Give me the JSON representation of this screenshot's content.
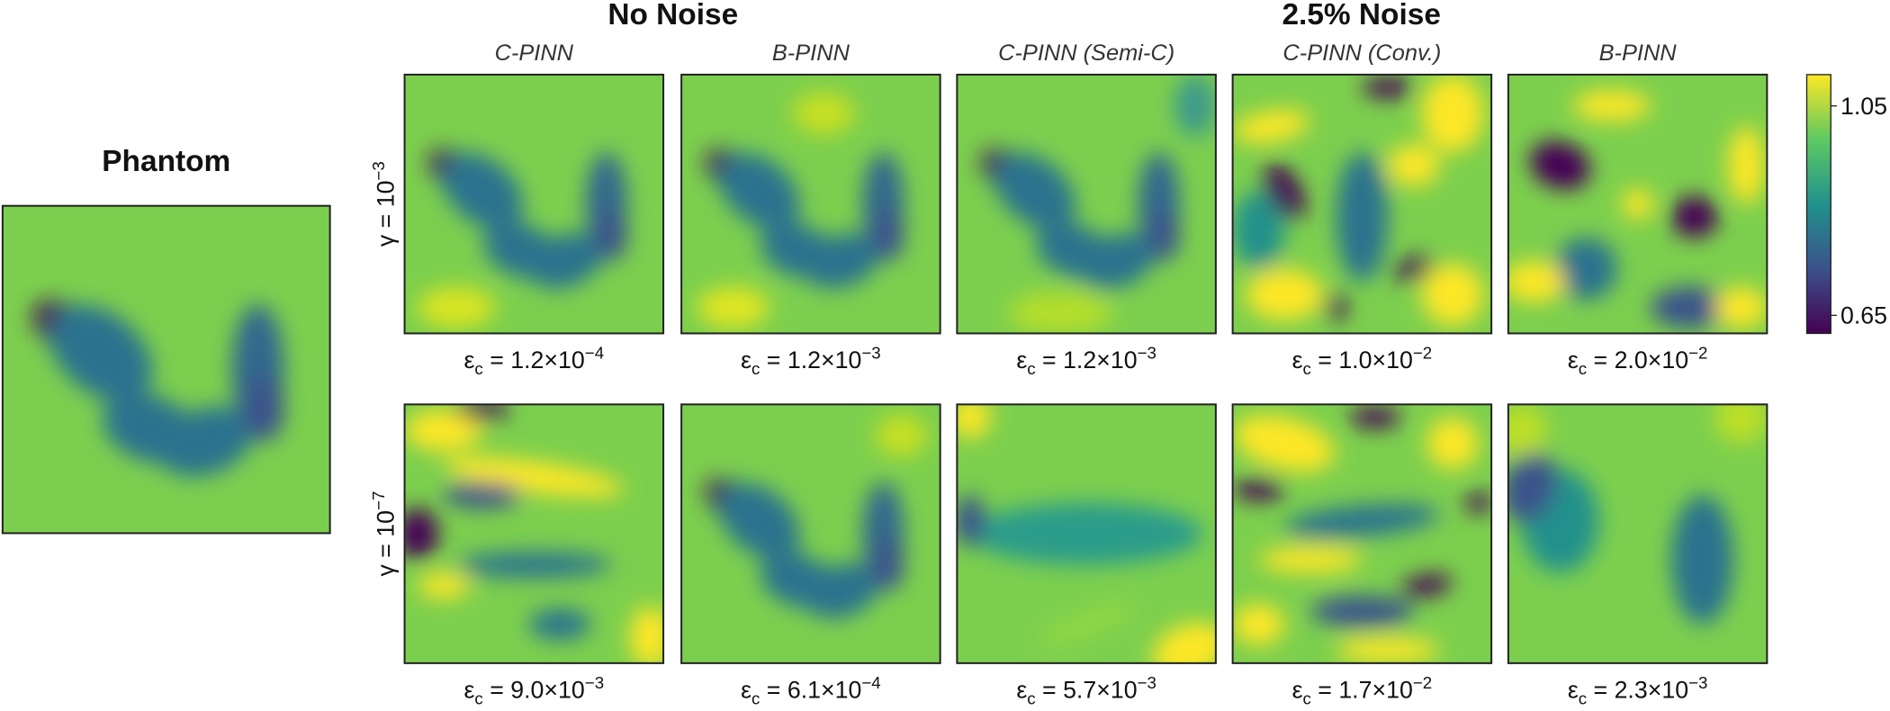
{
  "titles": {
    "left": "No Noise",
    "right": "2.5% Noise"
  },
  "phantom": {
    "title": "Phantom"
  },
  "columns": [
    "C-PINN",
    "B-PINN",
    "C-PINN (Semi-C)",
    "C-PINN (Conv.)",
    "B-PINN"
  ],
  "rows": [
    {
      "gamma": {
        "text": "γ = 10",
        "superscript": "−3"
      },
      "errors": [
        {
          "symbol": "ε",
          "subscript": "c",
          "text": " = 1.2×10",
          "superscript": "−4"
        },
        {
          "symbol": "ε",
          "subscript": "c",
          "text": " = 1.2×10",
          "superscript": "−3"
        },
        {
          "symbol": "ε",
          "subscript": "c",
          "text": " = 1.2×10",
          "superscript": "−3"
        },
        {
          "symbol": "ε",
          "subscript": "c",
          "text": " = 1.0×10",
          "superscript": "−2"
        },
        {
          "symbol": "ε",
          "subscript": "c",
          "text": " = 2.0×10",
          "superscript": "−2"
        }
      ]
    },
    {
      "gamma": {
        "text": "γ = 10",
        "superscript": "−7"
      },
      "errors": [
        {
          "symbol": "ε",
          "subscript": "c",
          "text": " = 9.0×10",
          "superscript": "−3"
        },
        {
          "symbol": "ε",
          "subscript": "c",
          "text": " = 6.1×10",
          "superscript": "−4"
        },
        {
          "symbol": "ε",
          "subscript": "c",
          "text": " = 5.7×10",
          "superscript": "−3"
        },
        {
          "symbol": "ε",
          "subscript": "c",
          "text": " = 1.7×10",
          "superscript": "−2"
        },
        {
          "symbol": "ε",
          "subscript": "c",
          "text": " = 2.3×10",
          "superscript": "−3"
        }
      ]
    }
  ],
  "colorbar": {
    "top_label": "1.05",
    "bottom_label": "0.65"
  }
}
